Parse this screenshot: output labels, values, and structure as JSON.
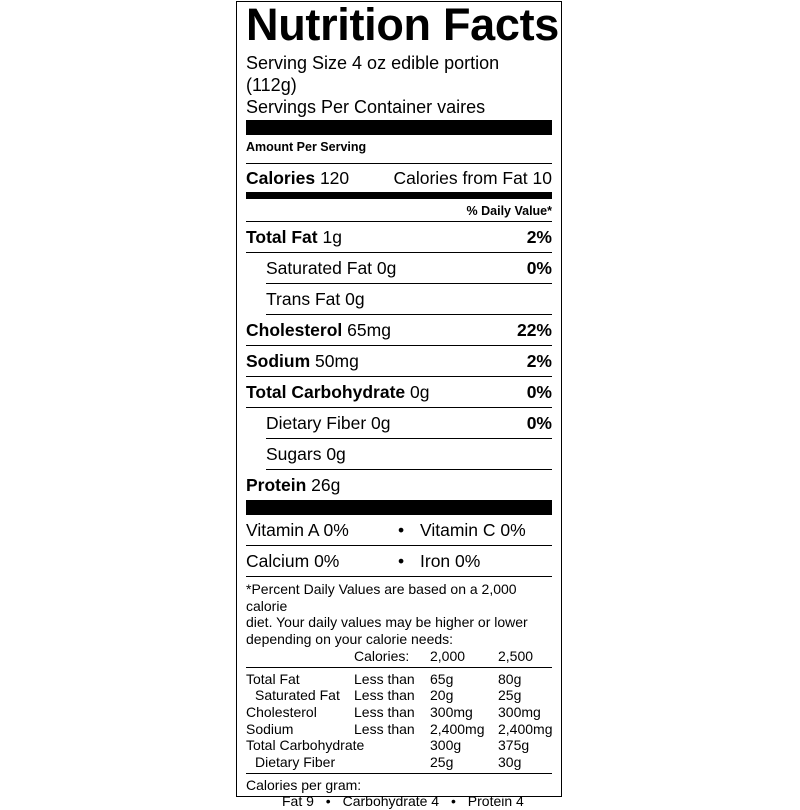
{
  "title": "Nutrition Facts",
  "serving": {
    "size": "Serving Size 4 oz edible portion",
    "size_grams": "(112g)",
    "per_container": "Servings Per Container vaires"
  },
  "amount_per_serving": "Amount Per Serving",
  "calories": {
    "label": "Calories",
    "value": "120",
    "from_fat": "Calories from Fat 10"
  },
  "daily_value_header": "% Daily Value*",
  "nutrients": [
    {
      "label": "Total Fat",
      "amount": "1g",
      "dv": "2%"
    },
    {
      "label": "Saturated Fat",
      "amount": "0g",
      "dv": "0%"
    },
    {
      "label": "Trans Fat",
      "amount": "0g",
      "dv": ""
    },
    {
      "label": "Cholesterol",
      "amount": "65mg",
      "dv": "22%"
    },
    {
      "label": "Sodium",
      "amount": "50mg",
      "dv": "2%"
    },
    {
      "label": "Total Carbohydrate",
      "amount": "0g",
      "dv": "0%"
    },
    {
      "label": "Dietary Fiber",
      "amount": "0g",
      "dv": "0%"
    },
    {
      "label": "Sugars",
      "amount": "0g",
      "dv": ""
    },
    {
      "label": "Protein",
      "amount": "26g",
      "dv": ""
    }
  ],
  "vitamins": {
    "vitamin_a": "Vitamin A 0%",
    "vitamin_c": "Vitamin C 0%",
    "calcium": "Calcium 0%",
    "iron": "Iron 0%",
    "bullet": "•"
  },
  "footnote": {
    "line1": "*Percent Daily Values are based on a 2,000 calorie",
    "line2": "diet. Your daily values may be higher or lower",
    "line3": "depending on your calorie needs:",
    "header": [
      "Calories:",
      "2,000",
      "2,500"
    ],
    "rows": [
      [
        "Total Fat",
        "Less than",
        "65g",
        "80g"
      ],
      [
        "Saturated Fat",
        "Less than",
        "20g",
        "25g"
      ],
      [
        "Cholesterol",
        "Less than",
        "300mg",
        "300mg"
      ],
      [
        "Sodium",
        "Less than",
        "2,400mg",
        "2,400mg"
      ],
      [
        "Total Carbohydrate",
        "",
        "300g",
        "375g"
      ],
      [
        "Dietary Fiber",
        "",
        "25g",
        "30g"
      ]
    ],
    "calories_per_gram": "Calories per gram:",
    "per_gram": [
      "Fat 9",
      "Carbohydrate 4",
      "Protein 4"
    ],
    "bullet": "•"
  }
}
